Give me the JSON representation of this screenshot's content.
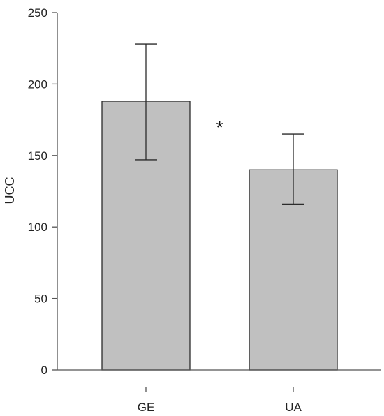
{
  "chart_data": {
    "type": "bar",
    "title": "",
    "xlabel": "",
    "ylabel": "UCC",
    "categories": [
      "GE",
      "UA"
    ],
    "values": [
      188,
      140
    ],
    "error_upper": [
      228,
      165
    ],
    "error_lower": [
      147,
      116
    ],
    "ylim": [
      0,
      250
    ],
    "yticks": [
      0,
      50,
      100,
      150,
      200,
      250
    ],
    "ytick_labels": [
      "0",
      "50",
      "100",
      "150",
      "200",
      "250"
    ],
    "grid": false,
    "bar_color": "#c0c0c0",
    "annotations": [
      {
        "text": "*",
        "between": [
          "GE",
          "UA"
        ],
        "y": 172
      }
    ]
  }
}
